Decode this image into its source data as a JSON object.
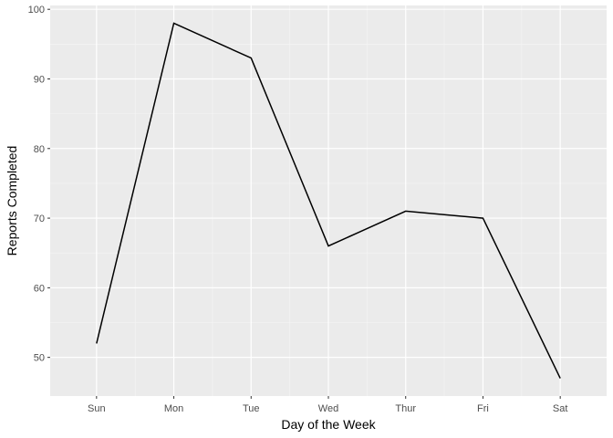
{
  "chart_data": {
    "type": "line",
    "xlabel": "Day of the Week",
    "ylabel": "Reports Completed",
    "categories": [
      "Sun",
      "Mon",
      "Tue",
      "Wed",
      "Thur",
      "Fri",
      "Sat"
    ],
    "series": [
      {
        "values": [
          52,
          98,
          93,
          66,
          71,
          70,
          47
        ]
      }
    ],
    "ylim": [
      44.45,
      100.55
    ],
    "yticks": [
      50,
      60,
      70,
      80,
      90,
      100
    ],
    "grid": true,
    "legend": "none",
    "colors": {
      "panel": "#ebebeb",
      "grid_major": "#ffffff",
      "grid_minor": "#f5f5f5",
      "line": "#000000",
      "tick": "#333333"
    }
  }
}
